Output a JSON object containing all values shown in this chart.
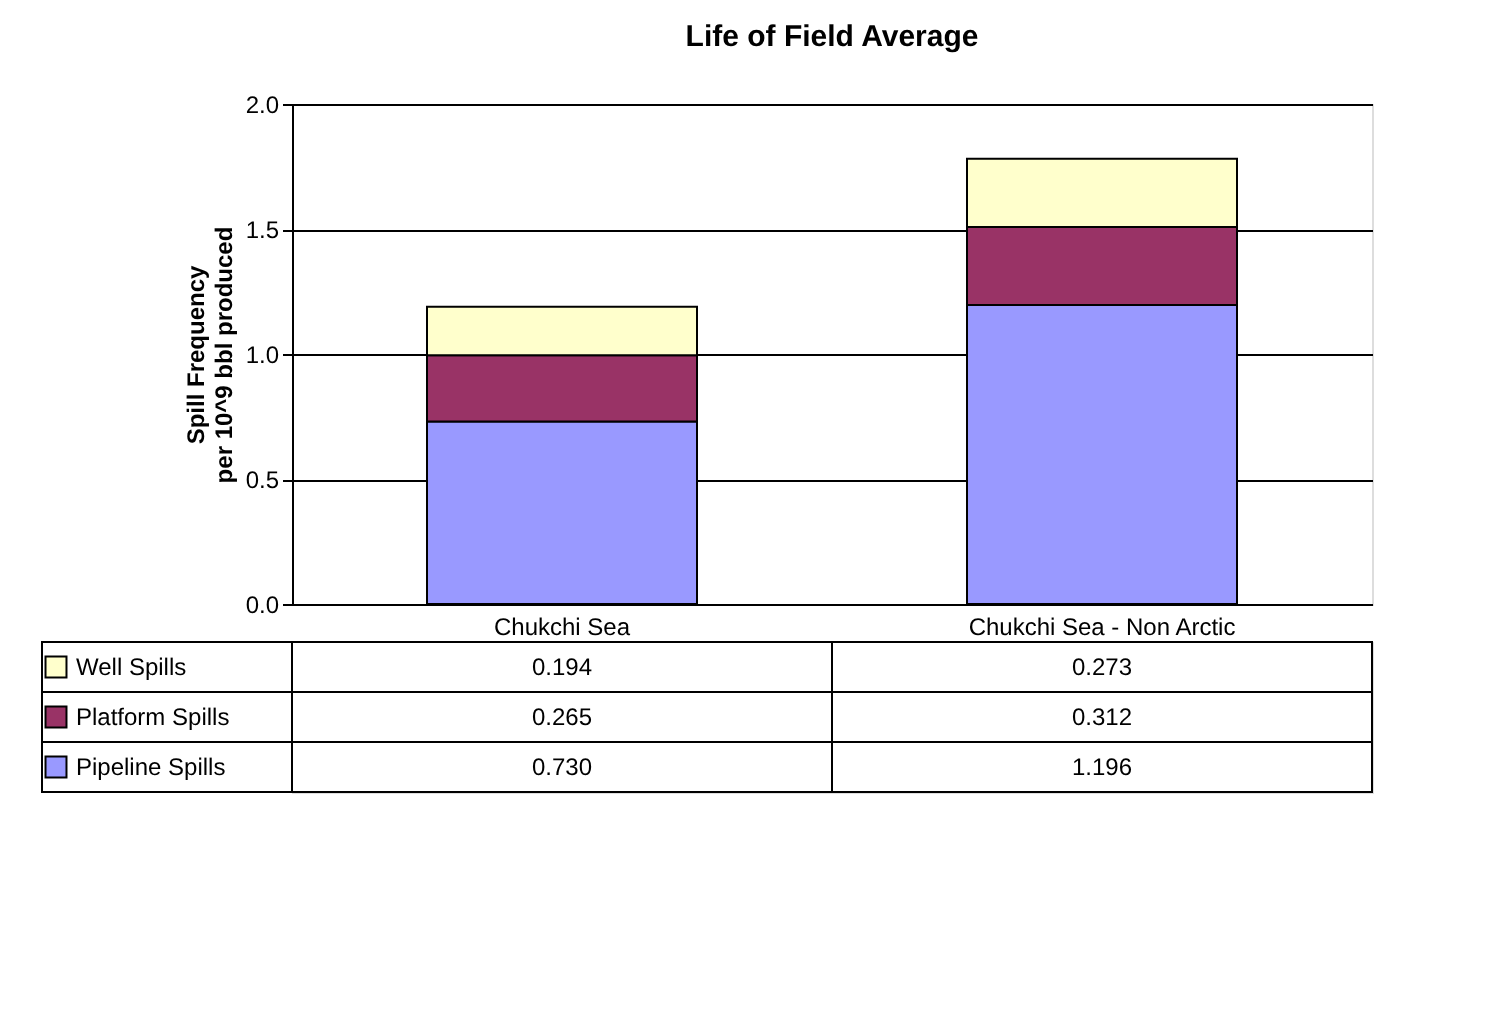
{
  "chart_data": {
    "type": "bar",
    "title": "Life of Field Average",
    "ylabel": "Spill Frequency\nper 10^9 bbl produced",
    "categories": [
      "Chukchi Sea",
      "Chukchi Sea - Non Arctic"
    ],
    "stacked": true,
    "ylim": [
      0,
      2
    ],
    "yticks": [
      {
        "value": 0,
        "label": "0.0"
      },
      {
        "value": 0.5,
        "label": "0.5"
      },
      {
        "value": 1,
        "label": "1.0"
      },
      {
        "value": 1.5,
        "label": "1.5"
      },
      {
        "value": 2,
        "label": "2.0"
      }
    ],
    "grid": "y",
    "legend": "bottom",
    "series": [
      {
        "name": "Pipeline Spills",
        "color": "#9999ff",
        "values": [
          0.73,
          1.196
        ],
        "value_labels": [
          "0.730",
          "1.196"
        ]
      },
      {
        "name": "Platform Spills",
        "color": "#993366",
        "values": [
          0.265,
          0.312
        ],
        "value_labels": [
          "0.265",
          "0.312"
        ]
      },
      {
        "name": "Well Spills",
        "color": "#ffffcc",
        "values": [
          0.194,
          0.273
        ],
        "value_labels": [
          "0.194",
          "0.273"
        ]
      }
    ]
  }
}
